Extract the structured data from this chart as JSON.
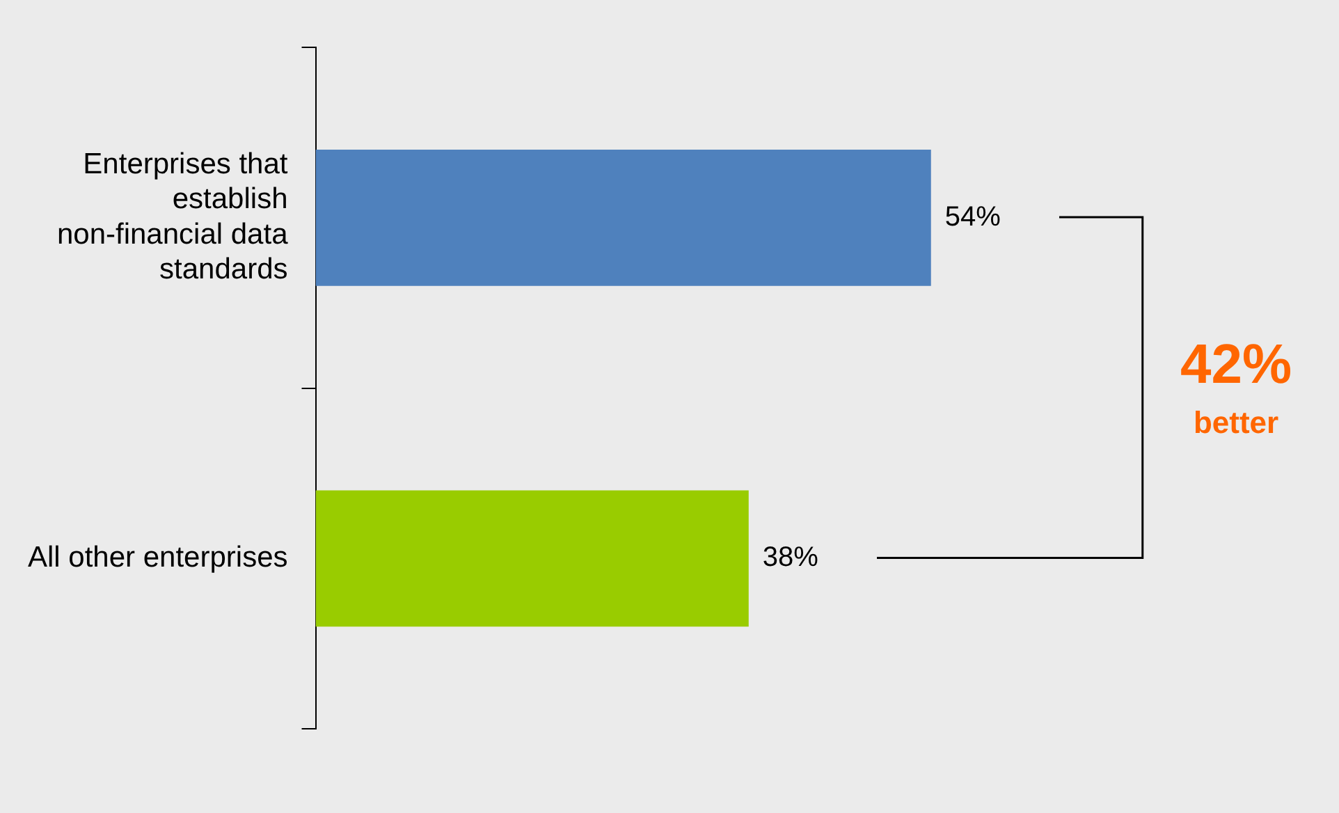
{
  "chart_data": {
    "type": "bar",
    "orientation": "horizontal",
    "categories": [
      "Enterprises that establish non-financial data standards",
      "All other enterprises"
    ],
    "values": [
      54,
      38
    ],
    "colors": [
      "#4f81bd",
      "#99cc00"
    ],
    "value_labels": [
      "54%",
      "38%"
    ],
    "annotations": [
      "42%",
      "better"
    ]
  }
}
